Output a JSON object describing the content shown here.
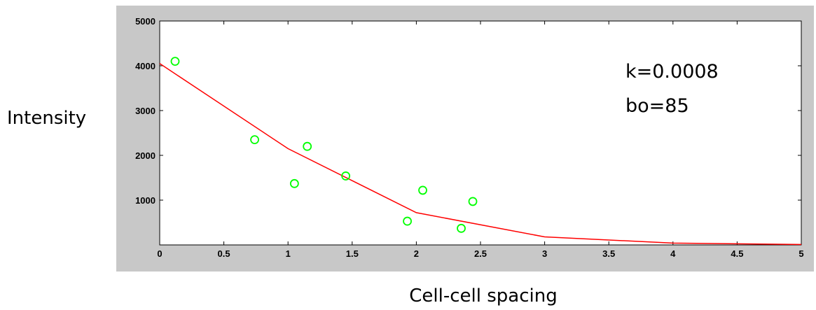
{
  "chart_data": {
    "type": "scatter",
    "xlabel": "Cell-cell spacing",
    "ylabel": "Intensity",
    "xlim": [
      0,
      5
    ],
    "ylim": [
      0,
      5000
    ],
    "x_ticks": [
      "0",
      "0.5",
      "1",
      "1.5",
      "2",
      "2.5",
      "3",
      "3.5",
      "4",
      "4.5",
      "5"
    ],
    "y_ticks": [
      "1000",
      "2000",
      "3000",
      "4000",
      "5000"
    ],
    "annotations": [
      "k=0.0008",
      "bo=85"
    ],
    "grid": false,
    "series": [
      {
        "kind": "points",
        "marker": "circle",
        "color": "#00ff00",
        "points": [
          {
            "x": 0.12,
            "y": 4100
          },
          {
            "x": 0.74,
            "y": 2350
          },
          {
            "x": 1.05,
            "y": 1370
          },
          {
            "x": 1.15,
            "y": 2200
          },
          {
            "x": 1.45,
            "y": 1540
          },
          {
            "x": 1.93,
            "y": 530
          },
          {
            "x": 2.05,
            "y": 1220
          },
          {
            "x": 2.35,
            "y": 370
          },
          {
            "x": 2.44,
            "y": 970
          }
        ]
      },
      {
        "kind": "line",
        "color": "#ff0000",
        "points": [
          {
            "x": 0,
            "y": 4050
          },
          {
            "x": 1,
            "y": 2150
          },
          {
            "x": 2,
            "y": 720
          },
          {
            "x": 3,
            "y": 180
          },
          {
            "x": 4,
            "y": 40
          },
          {
            "x": 5,
            "y": 10
          }
        ]
      }
    ]
  },
  "colors": {
    "frame_background": "#c8c8c8",
    "plot_background": "#ffffff",
    "marker": "#00ff00",
    "fit_line": "#ff0000"
  }
}
